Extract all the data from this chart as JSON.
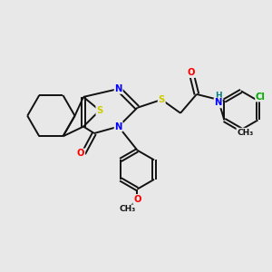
{
  "bg_color": "#e8e8e8",
  "atom_colors": {
    "S": "#cccc00",
    "N": "#0000ff",
    "O": "#ff0000",
    "Cl": "#00aa00",
    "H": "#008080",
    "C": "#111111"
  },
  "bond_color": "#111111",
  "bond_width": 1.4,
  "fig_size": [
    3.0,
    3.0
  ],
  "dpi": 100
}
